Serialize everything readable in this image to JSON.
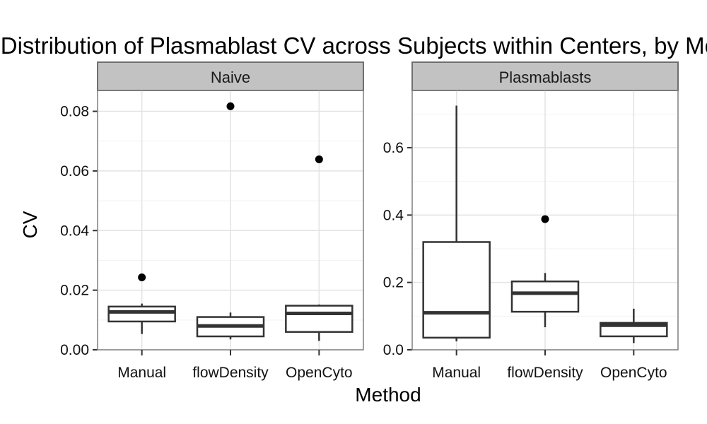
{
  "chart_data": {
    "type": "box",
    "title": "Distribution of Plasmablast CV across Subjects within Centers, by Method",
    "xlabel": "Method",
    "ylabel": "CV",
    "categories": [
      "Manual",
      "flowDensity",
      "OpenCyto"
    ],
    "grid": true,
    "facets": [
      {
        "label": "Naive",
        "ylim": [
          0,
          0.087
        ],
        "yticks": [
          "0.00",
          "0.02",
          "0.04",
          "0.06",
          "0.08"
        ],
        "boxes": [
          {
            "category": "Manual",
            "whisker_low": 0.0053,
            "q1": 0.0095,
            "median": 0.0127,
            "q3": 0.0145,
            "whisker_high": 0.0155,
            "outliers": [
              0.0243
            ]
          },
          {
            "category": "flowDensity",
            "whisker_low": 0.0035,
            "q1": 0.0045,
            "median": 0.008,
            "q3": 0.011,
            "whisker_high": 0.0125,
            "outliers": [
              0.0817
            ]
          },
          {
            "category": "OpenCyto",
            "whisker_low": 0.003,
            "q1": 0.006,
            "median": 0.0122,
            "q3": 0.0148,
            "whisker_high": 0.0152,
            "outliers": [
              0.0639
            ]
          }
        ]
      },
      {
        "label": "Plasmablasts",
        "ylim": [
          0,
          0.77
        ],
        "yticks": [
          "0.0",
          "0.2",
          "0.4",
          "0.6"
        ],
        "boxes": [
          {
            "category": "Manual",
            "whisker_low": 0.025,
            "q1": 0.036,
            "median": 0.11,
            "q3": 0.32,
            "whisker_high": 0.725,
            "outliers": []
          },
          {
            "category": "flowDensity",
            "whisker_low": 0.067,
            "q1": 0.113,
            "median": 0.168,
            "q3": 0.203,
            "whisker_high": 0.228,
            "outliers": [
              0.388
            ]
          },
          {
            "category": "OpenCyto",
            "whisker_low": 0.02,
            "q1": 0.04,
            "median": 0.073,
            "q3": 0.08,
            "whisker_high": 0.122,
            "outliers": []
          }
        ]
      }
    ]
  }
}
